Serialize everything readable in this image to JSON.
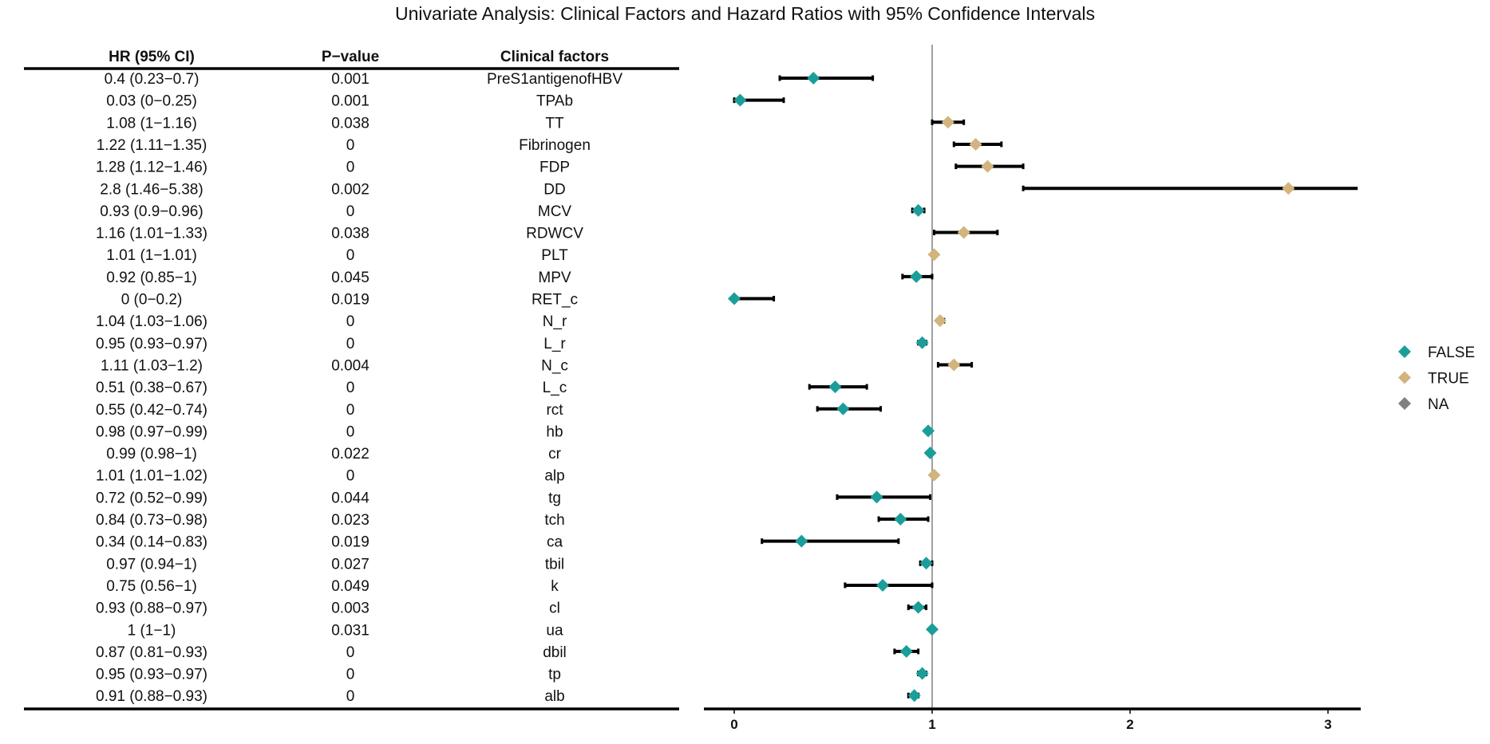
{
  "chart_data": {
    "type": "forest",
    "title": "Univariate Analysis: Clinical Factors and Hazard Ratios with 95% Confidence Intervals",
    "columns": [
      "HR (95% CI)",
      "P−value",
      "Clinical factors"
    ],
    "xlim": [
      -0.15,
      3.15
    ],
    "x_ticks": [
      0,
      1,
      2,
      3
    ],
    "reference_line": 1,
    "grid": false,
    "legend": {
      "position": "right",
      "entries": [
        {
          "label": "FALSE",
          "color": "#1b9e9a"
        },
        {
          "label": "TRUE",
          "color": "#d2b47c"
        },
        {
          "label": "NA",
          "color": "#808080"
        }
      ]
    },
    "rows": [
      {
        "factor": "PreS1antigenofHBV",
        "hr_ci": "0.4 (0.23−0.7)",
        "p": "0.001",
        "hr": 0.4,
        "lo": 0.23,
        "hi": 0.7,
        "group": "FALSE"
      },
      {
        "factor": "TPAb",
        "hr_ci": "0.03 (0−0.25)",
        "p": "0.001",
        "hr": 0.03,
        "lo": 0,
        "hi": 0.25,
        "group": "FALSE"
      },
      {
        "factor": "TT",
        "hr_ci": "1.08 (1−1.16)",
        "p": "0.038",
        "hr": 1.08,
        "lo": 1,
        "hi": 1.16,
        "group": "TRUE"
      },
      {
        "factor": "Fibrinogen",
        "hr_ci": "1.22 (1.11−1.35)",
        "p": "0",
        "hr": 1.22,
        "lo": 1.11,
        "hi": 1.35,
        "group": "TRUE"
      },
      {
        "factor": "FDP",
        "hr_ci": "1.28 (1.12−1.46)",
        "p": "0",
        "hr": 1.28,
        "lo": 1.12,
        "hi": 1.46,
        "group": "TRUE"
      },
      {
        "factor": "DD",
        "hr_ci": "2.8 (1.46−5.38)",
        "p": "0.002",
        "hr": 2.8,
        "lo": 1.46,
        "hi": 5.38,
        "group": "TRUE"
      },
      {
        "factor": "MCV",
        "hr_ci": "0.93 (0.9−0.96)",
        "p": "0",
        "hr": 0.93,
        "lo": 0.9,
        "hi": 0.96,
        "group": "FALSE"
      },
      {
        "factor": "RDWCV",
        "hr_ci": "1.16 (1.01−1.33)",
        "p": "0.038",
        "hr": 1.16,
        "lo": 1.01,
        "hi": 1.33,
        "group": "TRUE"
      },
      {
        "factor": "PLT",
        "hr_ci": "1.01 (1−1.01)",
        "p": "0",
        "hr": 1.01,
        "lo": 1,
        "hi": 1.01,
        "group": "TRUE"
      },
      {
        "factor": "MPV",
        "hr_ci": "0.92 (0.85−1)",
        "p": "0.045",
        "hr": 0.92,
        "lo": 0.85,
        "hi": 1,
        "group": "FALSE"
      },
      {
        "factor": "RET_c",
        "hr_ci": "0 (0−0.2)",
        "p": "0.019",
        "hr": 0,
        "lo": 0,
        "hi": 0.2,
        "group": "FALSE"
      },
      {
        "factor": "N_r",
        "hr_ci": "1.04 (1.03−1.06)",
        "p": "0",
        "hr": 1.04,
        "lo": 1.03,
        "hi": 1.06,
        "group": "TRUE"
      },
      {
        "factor": "L_r",
        "hr_ci": "0.95 (0.93−0.97)",
        "p": "0",
        "hr": 0.95,
        "lo": 0.93,
        "hi": 0.97,
        "group": "FALSE"
      },
      {
        "factor": "N_c",
        "hr_ci": "1.11 (1.03−1.2)",
        "p": "0.004",
        "hr": 1.11,
        "lo": 1.03,
        "hi": 1.2,
        "group": "TRUE"
      },
      {
        "factor": "L_c",
        "hr_ci": "0.51 (0.38−0.67)",
        "p": "0",
        "hr": 0.51,
        "lo": 0.38,
        "hi": 0.67,
        "group": "FALSE"
      },
      {
        "factor": "rct",
        "hr_ci": "0.55 (0.42−0.74)",
        "p": "0",
        "hr": 0.55,
        "lo": 0.42,
        "hi": 0.74,
        "group": "FALSE"
      },
      {
        "factor": "hb",
        "hr_ci": "0.98 (0.97−0.99)",
        "p": "0",
        "hr": 0.98,
        "lo": 0.97,
        "hi": 0.99,
        "group": "FALSE"
      },
      {
        "factor": "cr",
        "hr_ci": "0.99 (0.98−1)",
        "p": "0.022",
        "hr": 0.99,
        "lo": 0.98,
        "hi": 1,
        "group": "FALSE"
      },
      {
        "factor": "alp",
        "hr_ci": "1.01 (1.01−1.02)",
        "p": "0",
        "hr": 1.01,
        "lo": 1.01,
        "hi": 1.02,
        "group": "TRUE"
      },
      {
        "factor": "tg",
        "hr_ci": "0.72 (0.52−0.99)",
        "p": "0.044",
        "hr": 0.72,
        "lo": 0.52,
        "hi": 0.99,
        "group": "FALSE"
      },
      {
        "factor": "tch",
        "hr_ci": "0.84 (0.73−0.98)",
        "p": "0.023",
        "hr": 0.84,
        "lo": 0.73,
        "hi": 0.98,
        "group": "FALSE"
      },
      {
        "factor": "ca",
        "hr_ci": "0.34 (0.14−0.83)",
        "p": "0.019",
        "hr": 0.34,
        "lo": 0.14,
        "hi": 0.83,
        "group": "FALSE"
      },
      {
        "factor": "tbil",
        "hr_ci": "0.97 (0.94−1)",
        "p": "0.027",
        "hr": 0.97,
        "lo": 0.94,
        "hi": 1,
        "group": "FALSE"
      },
      {
        "factor": "k",
        "hr_ci": "0.75 (0.56−1)",
        "p": "0.049",
        "hr": 0.75,
        "lo": 0.56,
        "hi": 1,
        "group": "FALSE"
      },
      {
        "factor": "cl",
        "hr_ci": "0.93 (0.88−0.97)",
        "p": "0.003",
        "hr": 0.93,
        "lo": 0.88,
        "hi": 0.97,
        "group": "FALSE"
      },
      {
        "factor": "ua",
        "hr_ci": "1 (1−1)",
        "p": "0.031",
        "hr": 1,
        "lo": 1,
        "hi": 1,
        "group": "FALSE"
      },
      {
        "factor": "dbil",
        "hr_ci": "0.87 (0.81−0.93)",
        "p": "0",
        "hr": 0.87,
        "lo": 0.81,
        "hi": 0.93,
        "group": "FALSE"
      },
      {
        "factor": "tp",
        "hr_ci": "0.95 (0.93−0.97)",
        "p": "0",
        "hr": 0.95,
        "lo": 0.93,
        "hi": 0.97,
        "group": "FALSE"
      },
      {
        "factor": "alb",
        "hr_ci": "0.91 (0.88−0.93)",
        "p": "0",
        "hr": 0.91,
        "lo": 0.88,
        "hi": 0.93,
        "group": "FALSE"
      }
    ]
  }
}
